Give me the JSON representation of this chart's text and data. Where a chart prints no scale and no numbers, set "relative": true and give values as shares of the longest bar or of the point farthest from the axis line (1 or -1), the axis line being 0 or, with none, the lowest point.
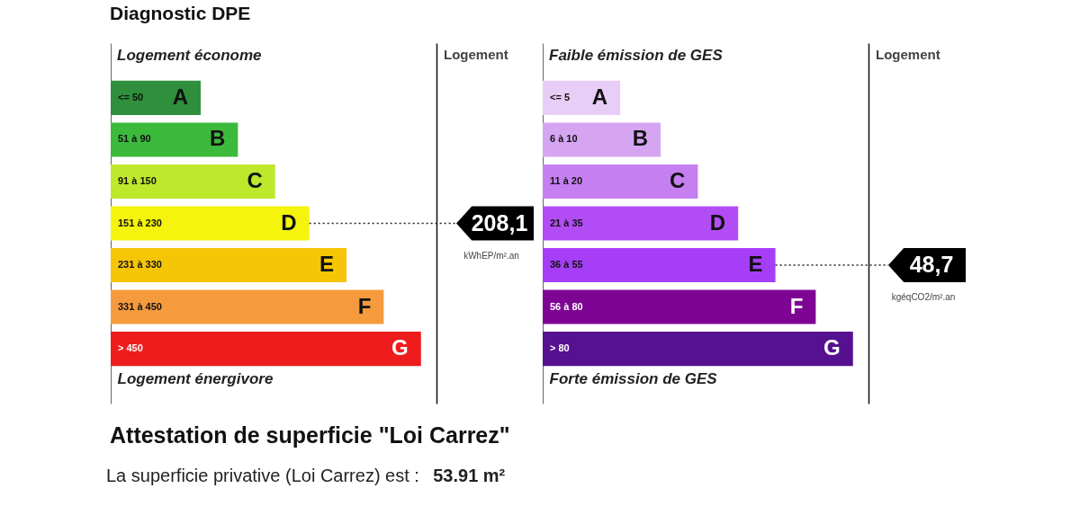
{
  "chart_data": [
    {
      "type": "bar",
      "orientation": "horizontal",
      "relative": true,
      "title": "Diagnostic DPE",
      "subtitle": "Logement économe",
      "xlabel": "Logement énergivore",
      "categories": [
        "A",
        "B",
        "C",
        "D",
        "E",
        "F",
        "G"
      ],
      "values": [
        0.29,
        0.41,
        0.53,
        0.64,
        0.76,
        0.88,
        1
      ],
      "colors": [
        "#2f8f3c",
        "#3cba3c",
        "#bde82b",
        "#f4f40c",
        "#f5c506",
        "#f59b3e",
        "#ee1c1c"
      ],
      "annotations": [
        "<= 50",
        "51 à 90",
        "91 à 150",
        "151 à 230",
        "231 à 330",
        "331 à 450",
        "> 450",
        {
          "text": "208,1",
          "x": 0.64,
          "y": "D"
        },
        "kWhEP/m².an",
        "Logement"
      ]
    },
    {
      "type": "bar",
      "orientation": "horizontal",
      "relative": true,
      "subtitle": "Faible émission de GES",
      "xlabel": "Forte émission de GES",
      "categories": [
        "A",
        "B",
        "C",
        "D",
        "E",
        "F",
        "G"
      ],
      "values": [
        0.25,
        0.38,
        0.5,
        0.63,
        0.75,
        0.88,
        1
      ],
      "colors": [
        "#e8cdf6",
        "#d6a5f2",
        "#c57ff0",
        "#b24df5",
        "#a63ef7",
        "#7e0594",
        "#561190"
      ],
      "annotations": [
        "<= 5",
        "6 à 10",
        "11 à 20",
        "21 à 35",
        "36 à 55",
        "56 à 80",
        "> 80",
        {
          "text": "48,7",
          "x": 0.75,
          "y": "E"
        },
        "kgéqCO2/m².an",
        "Logement"
      ]
    },
    {
      "type": "other",
      "title": "Attestation de superficie \"Loi Carrez\"",
      "annotations": [
        "La superficie privative (Loi Carrez) est :",
        "53.91 m²"
      ]
    }
  ]
}
